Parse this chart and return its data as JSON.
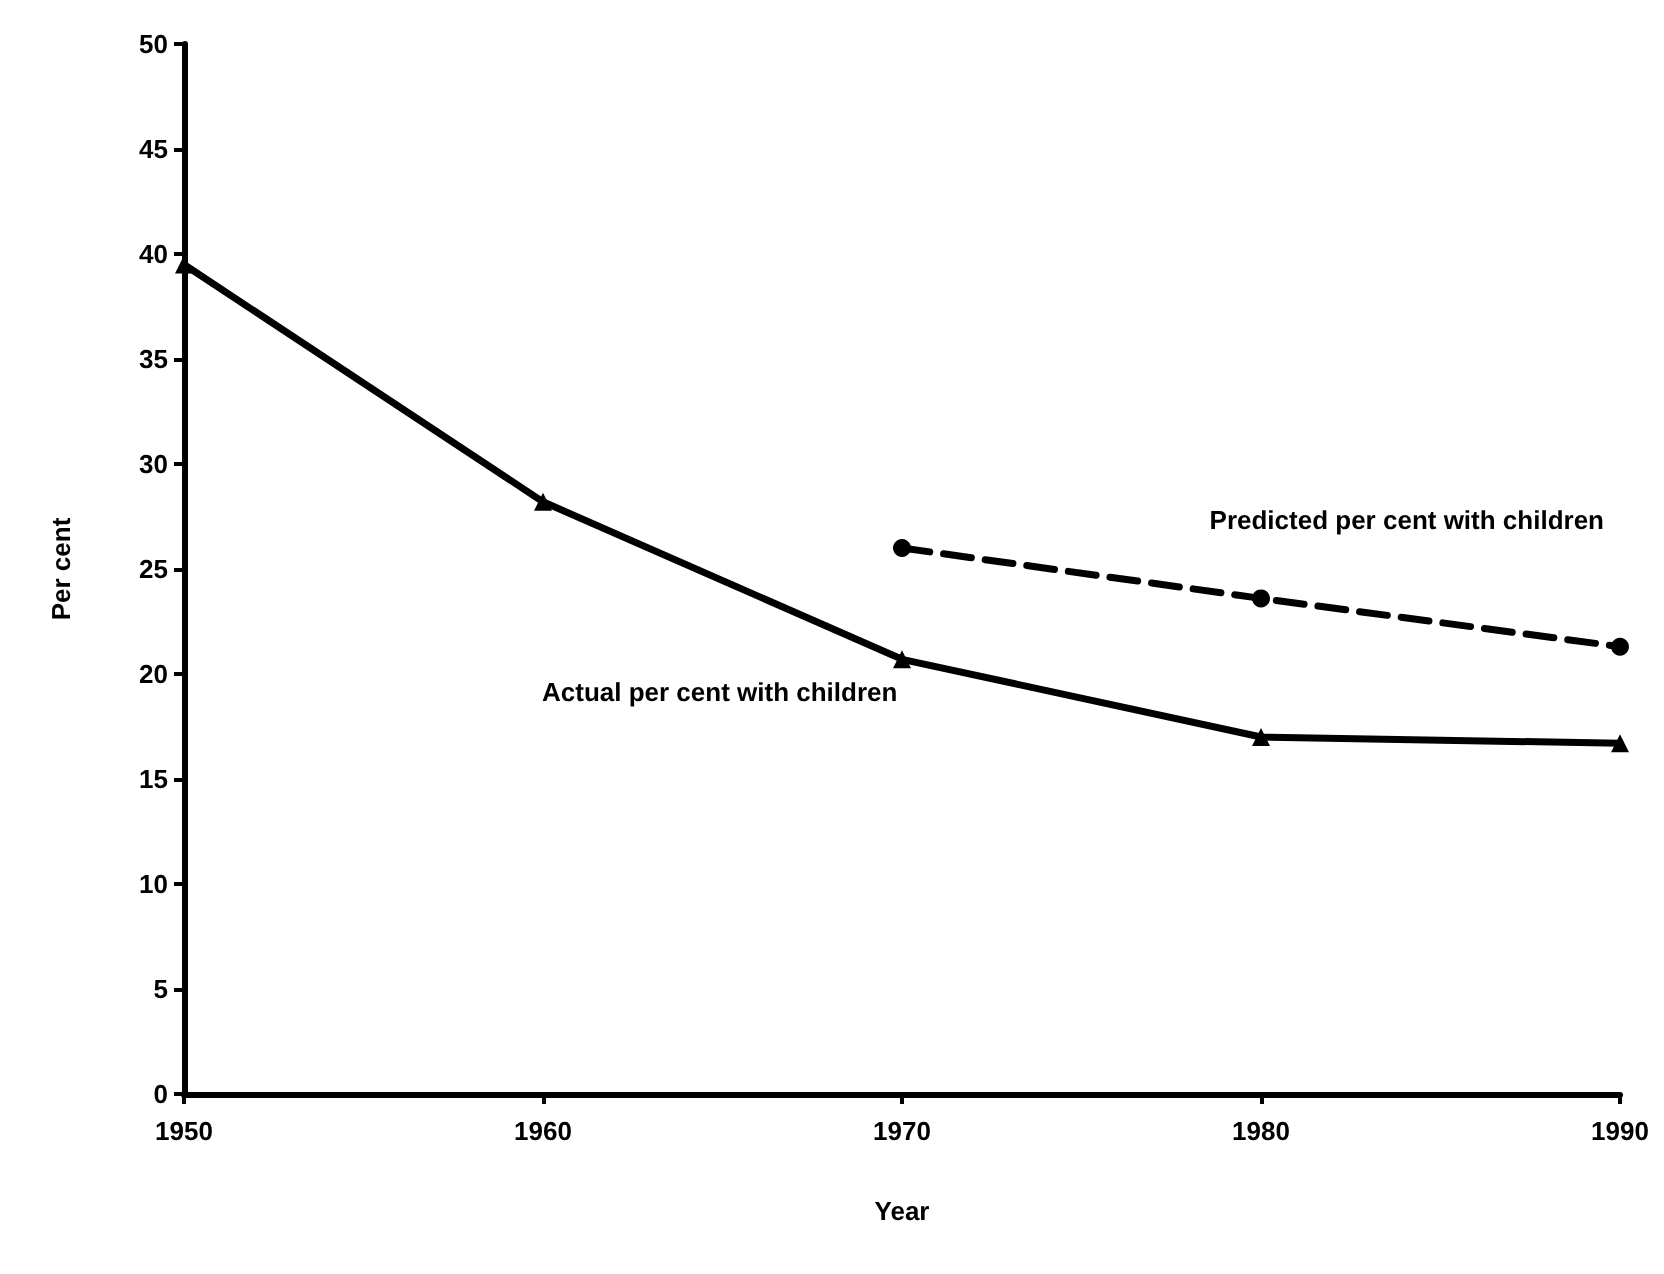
{
  "chart_data": {
    "type": "line",
    "xlabel": "Year",
    "ylabel": "Per cent",
    "x": [
      1950,
      1960,
      1970,
      1980,
      1990
    ],
    "xlim": [
      1950,
      1990
    ],
    "xticks": [
      1950,
      1960,
      1970,
      1980,
      1990
    ],
    "ylim": [
      0,
      50
    ],
    "yticks": [
      0,
      5,
      10,
      15,
      20,
      25,
      30,
      35,
      40,
      45,
      50
    ],
    "grid": false,
    "legend": false,
    "series": [
      {
        "name": "Actual per cent with children",
        "color": "#000000",
        "values": [
          39.5,
          28.2,
          20.7,
          17,
          16.7
        ],
        "marker": "triangle",
        "line_style": "solid"
      },
      {
        "name": "Predicted per cent with children",
        "color": "#000000",
        "x": [
          1970,
          1980,
          1990
        ],
        "values": [
          26,
          23.6,
          21.3
        ],
        "marker": "circle",
        "line_style": "dashed"
      }
    ]
  }
}
